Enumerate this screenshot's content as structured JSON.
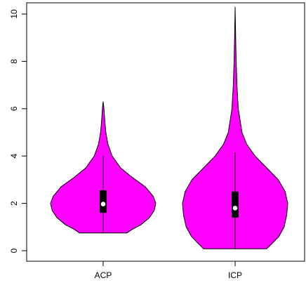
{
  "chart_data": {
    "type": "violin",
    "title": "",
    "xlabel": "",
    "ylabel": "",
    "ylim": [
      -0.4,
      10.5
    ],
    "yticks": [
      0,
      2,
      4,
      6,
      8,
      10
    ],
    "grid": false,
    "fill_color": "#ff00ff",
    "categories": [
      "ACP",
      "ICP"
    ],
    "series": [
      {
        "category": "ACP",
        "min": 0.75,
        "q1": 1.6,
        "median": 1.97,
        "q3": 2.55,
        "whisker_low": 0.75,
        "whisker_high": 4.0,
        "max": 6.3,
        "density": [
          [
            0.75,
            0.45
          ],
          [
            0.9,
            0.55
          ],
          [
            1.1,
            0.72
          ],
          [
            1.4,
            0.88
          ],
          [
            1.7,
            0.97
          ],
          [
            2.0,
            1.0
          ],
          [
            2.3,
            0.95
          ],
          [
            2.7,
            0.8
          ],
          [
            3.1,
            0.55
          ],
          [
            3.5,
            0.33
          ],
          [
            4.0,
            0.17
          ],
          [
            4.5,
            0.09
          ],
          [
            5.0,
            0.05
          ],
          [
            5.5,
            0.03
          ],
          [
            6.0,
            0.015
          ],
          [
            6.3,
            0.0
          ]
        ]
      },
      {
        "category": "ICP",
        "min": 0.08,
        "q1": 1.4,
        "median": 1.8,
        "q3": 2.5,
        "whisker_low": 0.08,
        "whisker_high": 4.15,
        "max": 10.3,
        "density": [
          [
            0.08,
            0.6
          ],
          [
            0.3,
            0.7
          ],
          [
            0.6,
            0.83
          ],
          [
            1.0,
            0.93
          ],
          [
            1.5,
            0.98
          ],
          [
            2.0,
            1.0
          ],
          [
            2.5,
            0.95
          ],
          [
            3.0,
            0.82
          ],
          [
            3.5,
            0.6
          ],
          [
            4.0,
            0.38
          ],
          [
            4.5,
            0.22
          ],
          [
            5.0,
            0.13
          ],
          [
            6.0,
            0.06
          ],
          [
            7.0,
            0.035
          ],
          [
            8.0,
            0.02
          ],
          [
            9.0,
            0.01
          ],
          [
            10.3,
            0.0
          ]
        ]
      }
    ]
  }
}
